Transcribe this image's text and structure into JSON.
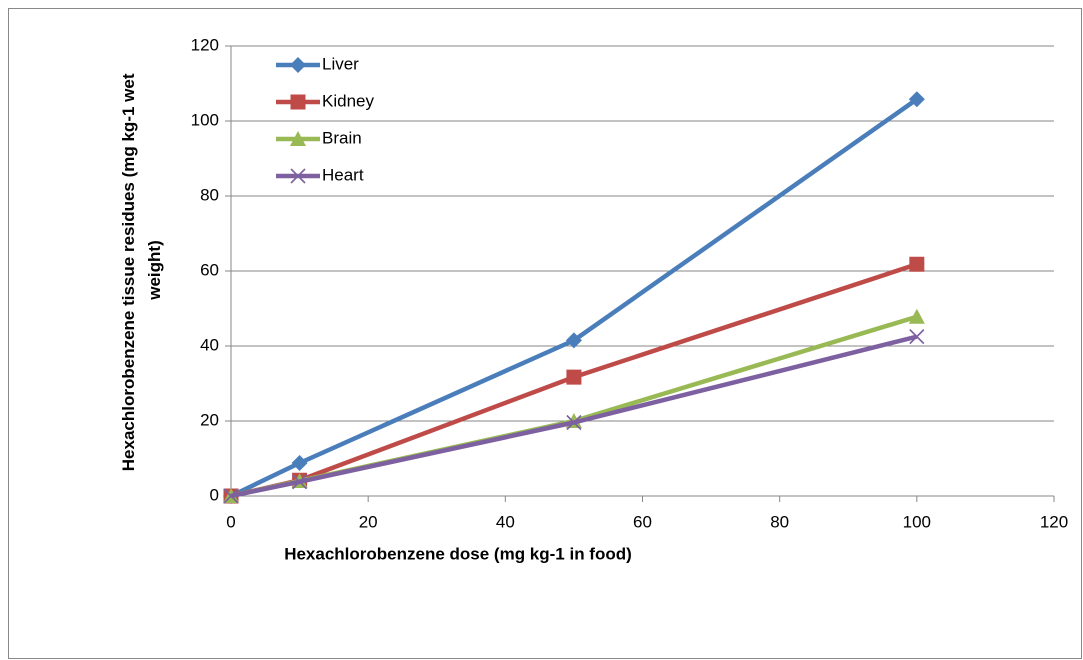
{
  "chart_data": {
    "type": "line",
    "x": [
      0,
      10,
      50,
      100
    ],
    "series": [
      {
        "name": "Liver",
        "color": "#4a7ebb",
        "marker": "diamond",
        "values": [
          0,
          8.8,
          41.5,
          105.8
        ]
      },
      {
        "name": "Kidney",
        "color": "#be4b48",
        "marker": "square",
        "values": [
          0,
          4.2,
          31.7,
          61.8
        ]
      },
      {
        "name": "Brain",
        "color": "#98b954",
        "marker": "triangle",
        "values": [
          0,
          4,
          20,
          47.8
        ]
      },
      {
        "name": "Heart",
        "color": "#7d60a0",
        "marker": "x",
        "values": [
          0,
          3.8,
          19.6,
          42.5
        ]
      }
    ],
    "xlabel": "Hexachlorobenzene dose (mg kg-1 in food)",
    "ylabel": [
      "Hexachlorobenzene tissue residues (mg kg-1 wet",
      "weight)"
    ],
    "xlim": [
      0,
      120
    ],
    "xticks": [
      0,
      20,
      40,
      60,
      80,
      100,
      120
    ],
    "ylim": [
      0,
      120
    ],
    "yticks": [
      0,
      20,
      40,
      60,
      80,
      100,
      120
    ],
    "grid": true,
    "legend": "upper left"
  }
}
